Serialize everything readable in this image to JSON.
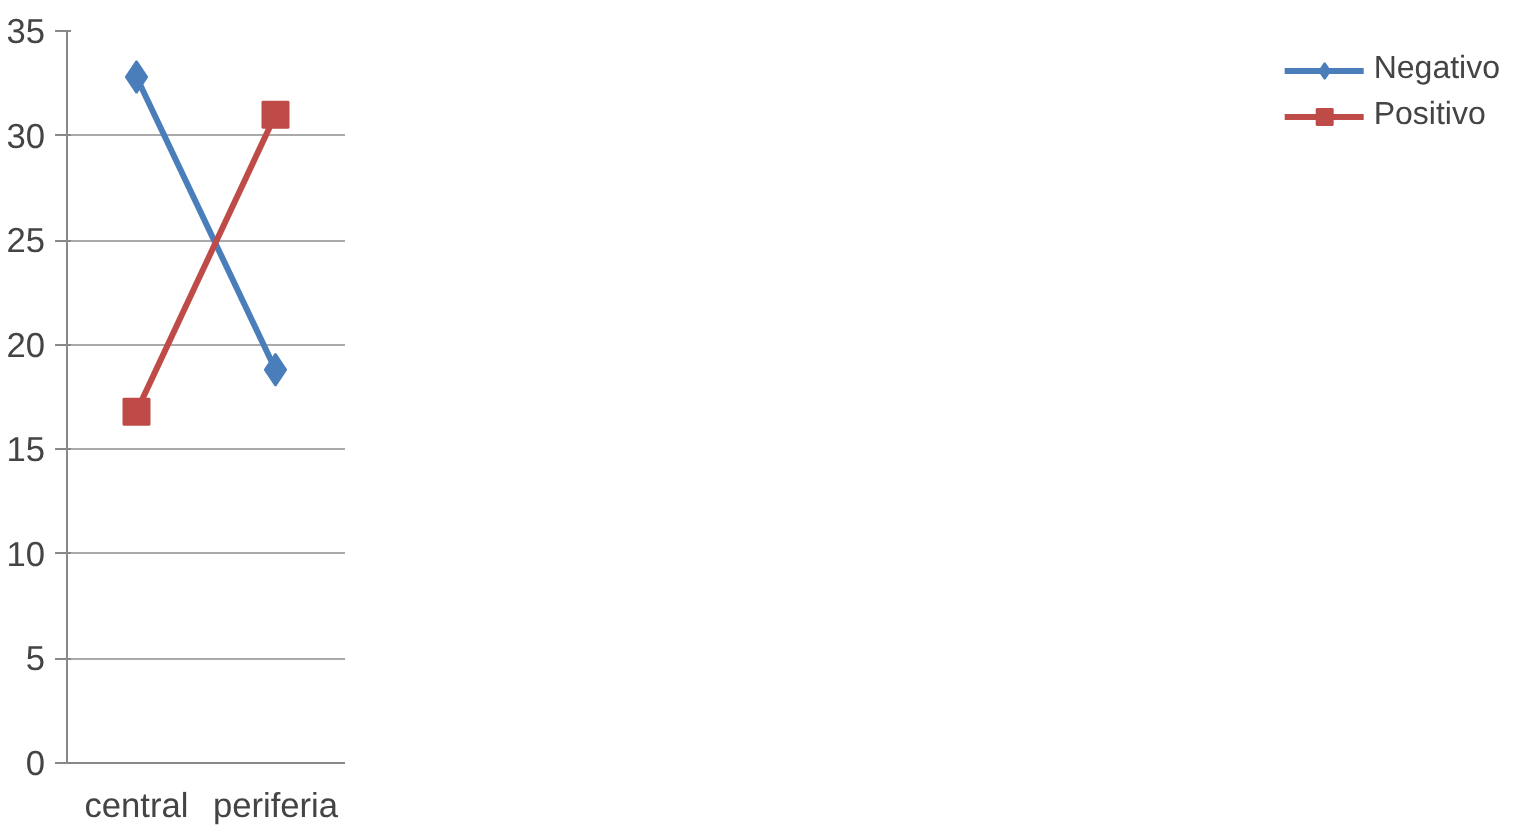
{
  "chart_data": {
    "type": "line",
    "categories": [
      "central",
      "periferia"
    ],
    "series": [
      {
        "name": "Negativo",
        "color": "#4a7ebb",
        "marker": "diamond",
        "values": [
          32.8,
          18.8
        ]
      },
      {
        "name": "Positivo",
        "color": "#be4b48",
        "marker": "square",
        "values": [
          16.8,
          31.0
        ]
      }
    ],
    "ylim": [
      0,
      35
    ],
    "yticks": [
      0,
      5,
      10,
      15,
      20,
      25,
      30,
      35
    ],
    "grid": "y",
    "legend": "right"
  }
}
